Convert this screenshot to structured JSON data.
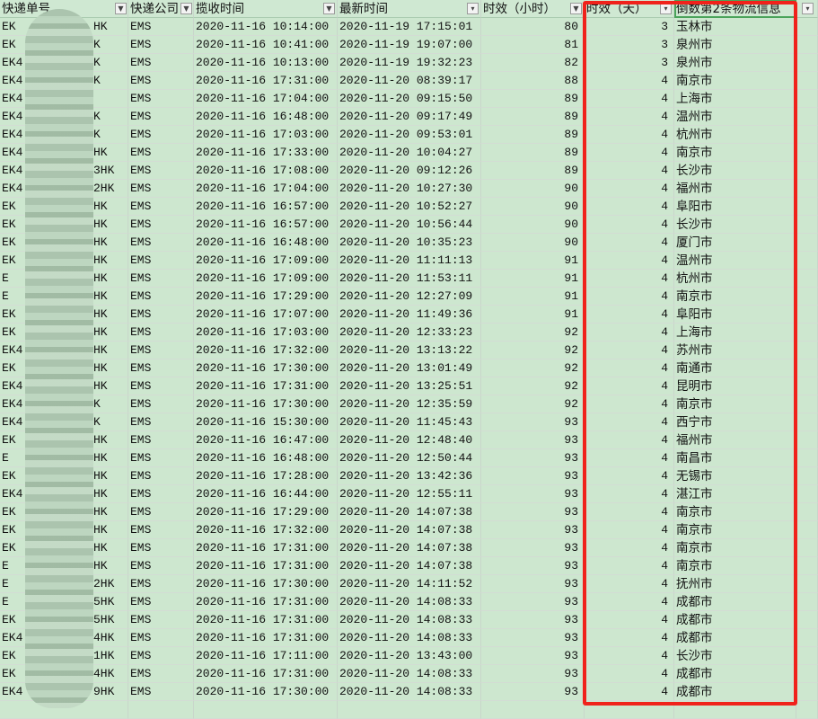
{
  "headers": [
    "快递单号",
    "快递公司",
    "揽收时间",
    "最新时间",
    "时效（小时）",
    "时效（天）",
    "倒数第2条物流信息",
    ""
  ],
  "header_filters": [
    "dropdown",
    "dropdown",
    "dropdown",
    "filter-active",
    "dropdown",
    "filter-active",
    "none",
    "filter-active"
  ],
  "colors": {
    "cell_bg": "#cde7cf",
    "highlight_border": "#f0221b",
    "selected_header_border": "#4aa35a"
  },
  "rows": [
    {
      "id_start": "EK",
      "id_end": "HK",
      "company": "EMS",
      "pickup": "2020-11-16 10:14:00",
      "latest": "2020-11-19 17:15:01",
      "hours": "80",
      "days": "3",
      "city": "玉林市"
    },
    {
      "id_start": "EK",
      "id_end": "K",
      "company": "EMS",
      "pickup": "2020-11-16 10:41:00",
      "latest": "2020-11-19 19:07:00",
      "hours": "81",
      "days": "3",
      "city": "泉州市"
    },
    {
      "id_start": "EK4",
      "id_end": "K",
      "company": "EMS",
      "pickup": "2020-11-16 10:13:00",
      "latest": "2020-11-19 19:32:23",
      "hours": "82",
      "days": "3",
      "city": "泉州市"
    },
    {
      "id_start": "EK4",
      "id_end": "K",
      "company": "EMS",
      "pickup": "2020-11-16 17:31:00",
      "latest": "2020-11-20 08:39:17",
      "hours": "88",
      "days": "4",
      "city": "南京市"
    },
    {
      "id_start": "EK4",
      "id_end": "",
      "company": "EMS",
      "pickup": "2020-11-16 17:04:00",
      "latest": "2020-11-20 09:15:50",
      "hours": "89",
      "days": "4",
      "city": "上海市"
    },
    {
      "id_start": "EK4",
      "id_end": "K",
      "company": "EMS",
      "pickup": "2020-11-16 16:48:00",
      "latest": "2020-11-20 09:17:49",
      "hours": "89",
      "days": "4",
      "city": "温州市"
    },
    {
      "id_start": "EK4",
      "id_end": "K",
      "company": "EMS",
      "pickup": "2020-11-16 17:03:00",
      "latest": "2020-11-20 09:53:01",
      "hours": "89",
      "days": "4",
      "city": "杭州市"
    },
    {
      "id_start": "EK4",
      "id_end": "HK",
      "company": "EMS",
      "pickup": "2020-11-16 17:33:00",
      "latest": "2020-11-20 10:04:27",
      "hours": "89",
      "days": "4",
      "city": "南京市"
    },
    {
      "id_start": "EK4",
      "id_end": "3HK",
      "company": "EMS",
      "pickup": "2020-11-16 17:08:00",
      "latest": "2020-11-20 09:12:26",
      "hours": "89",
      "days": "4",
      "city": "长沙市"
    },
    {
      "id_start": "EK4",
      "id_end": "2HK",
      "company": "EMS",
      "pickup": "2020-11-16 17:04:00",
      "latest": "2020-11-20 10:27:30",
      "hours": "90",
      "days": "4",
      "city": "福州市"
    },
    {
      "id_start": "EK",
      "id_end": "HK",
      "company": "EMS",
      "pickup": "2020-11-16 16:57:00",
      "latest": "2020-11-20 10:52:27",
      "hours": "90",
      "days": "4",
      "city": "阜阳市"
    },
    {
      "id_start": "EK",
      "id_end": "HK",
      "company": "EMS",
      "pickup": "2020-11-16 16:57:00",
      "latest": "2020-11-20 10:56:44",
      "hours": "90",
      "days": "4",
      "city": "长沙市"
    },
    {
      "id_start": "EK",
      "id_end": "HK",
      "company": "EMS",
      "pickup": "2020-11-16 16:48:00",
      "latest": "2020-11-20 10:35:23",
      "hours": "90",
      "days": "4",
      "city": "厦门市"
    },
    {
      "id_start": "EK",
      "id_end": "HK",
      "company": "EMS",
      "pickup": "2020-11-16 17:09:00",
      "latest": "2020-11-20 11:11:13",
      "hours": "91",
      "days": "4",
      "city": "温州市"
    },
    {
      "id_start": "E",
      "id_end": "HK",
      "company": "EMS",
      "pickup": "2020-11-16 17:09:00",
      "latest": "2020-11-20 11:53:11",
      "hours": "91",
      "days": "4",
      "city": "杭州市"
    },
    {
      "id_start": "E",
      "id_end": "HK",
      "company": "EMS",
      "pickup": "2020-11-16 17:29:00",
      "latest": "2020-11-20 12:27:09",
      "hours": "91",
      "days": "4",
      "city": "南京市"
    },
    {
      "id_start": "EK",
      "id_end": "HK",
      "company": "EMS",
      "pickup": "2020-11-16 17:07:00",
      "latest": "2020-11-20 11:49:36",
      "hours": "91",
      "days": "4",
      "city": "阜阳市"
    },
    {
      "id_start": "EK",
      "id_end": "HK",
      "company": "EMS",
      "pickup": "2020-11-16 17:03:00",
      "latest": "2020-11-20 12:33:23",
      "hours": "92",
      "days": "4",
      "city": "上海市"
    },
    {
      "id_start": "EK4",
      "id_end": "HK",
      "company": "EMS",
      "pickup": "2020-11-16 17:32:00",
      "latest": "2020-11-20 13:13:22",
      "hours": "92",
      "days": "4",
      "city": "苏州市"
    },
    {
      "id_start": "EK",
      "id_end": "HK",
      "company": "EMS",
      "pickup": "2020-11-16 17:30:00",
      "latest": "2020-11-20 13:01:49",
      "hours": "92",
      "days": "4",
      "city": "南通市"
    },
    {
      "id_start": "EK4",
      "id_end": "HK",
      "company": "EMS",
      "pickup": "2020-11-16 17:31:00",
      "latest": "2020-11-20 13:25:51",
      "hours": "92",
      "days": "4",
      "city": "昆明市"
    },
    {
      "id_start": "EK4",
      "id_end": "K",
      "company": "EMS",
      "pickup": "2020-11-16 17:30:00",
      "latest": "2020-11-20 12:35:59",
      "hours": "92",
      "days": "4",
      "city": "南京市"
    },
    {
      "id_start": "EK4",
      "id_end": "K",
      "company": "EMS",
      "pickup": "2020-11-16 15:30:00",
      "latest": "2020-11-20 11:45:43",
      "hours": "93",
      "days": "4",
      "city": "西宁市"
    },
    {
      "id_start": "EK",
      "id_end": "HK",
      "company": "EMS",
      "pickup": "2020-11-16 16:47:00",
      "latest": "2020-11-20 12:48:40",
      "hours": "93",
      "days": "4",
      "city": "福州市"
    },
    {
      "id_start": "E",
      "id_end": "HK",
      "company": "EMS",
      "pickup": "2020-11-16 16:48:00",
      "latest": "2020-11-20 12:50:44",
      "hours": "93",
      "days": "4",
      "city": "南昌市"
    },
    {
      "id_start": "EK",
      "id_end": "HK",
      "company": "EMS",
      "pickup": "2020-11-16 17:28:00",
      "latest": "2020-11-20 13:42:36",
      "hours": "93",
      "days": "4",
      "city": "无锡市"
    },
    {
      "id_start": "EK4",
      "id_end": "HK",
      "company": "EMS",
      "pickup": "2020-11-16 16:44:00",
      "latest": "2020-11-20 12:55:11",
      "hours": "93",
      "days": "4",
      "city": "湛江市"
    },
    {
      "id_start": "EK",
      "id_end": "HK",
      "company": "EMS",
      "pickup": "2020-11-16 17:29:00",
      "latest": "2020-11-20 14:07:38",
      "hours": "93",
      "days": "4",
      "city": "南京市"
    },
    {
      "id_start": "EK",
      "id_end": "HK",
      "company": "EMS",
      "pickup": "2020-11-16 17:32:00",
      "latest": "2020-11-20 14:07:38",
      "hours": "93",
      "days": "4",
      "city": "南京市"
    },
    {
      "id_start": "EK",
      "id_end": "HK",
      "company": "EMS",
      "pickup": "2020-11-16 17:31:00",
      "latest": "2020-11-20 14:07:38",
      "hours": "93",
      "days": "4",
      "city": "南京市"
    },
    {
      "id_start": "E",
      "id_end": "HK",
      "company": "EMS",
      "pickup": "2020-11-16 17:31:00",
      "latest": "2020-11-20 14:07:38",
      "hours": "93",
      "days": "4",
      "city": "南京市"
    },
    {
      "id_start": "E",
      "id_end": "2HK",
      "company": "EMS",
      "pickup": "2020-11-16 17:30:00",
      "latest": "2020-11-20 14:11:52",
      "hours": "93",
      "days": "4",
      "city": "抚州市"
    },
    {
      "id_start": "E",
      "id_end": "5HK",
      "company": "EMS",
      "pickup": "2020-11-16 17:31:00",
      "latest": "2020-11-20 14:08:33",
      "hours": "93",
      "days": "4",
      "city": "成都市"
    },
    {
      "id_start": "EK",
      "id_end": "5HK",
      "company": "EMS",
      "pickup": "2020-11-16 17:31:00",
      "latest": "2020-11-20 14:08:33",
      "hours": "93",
      "days": "4",
      "city": "成都市"
    },
    {
      "id_start": "EK4",
      "id_end": "4HK",
      "company": "EMS",
      "pickup": "2020-11-16 17:31:00",
      "latest": "2020-11-20 14:08:33",
      "hours": "93",
      "days": "4",
      "city": "成都市"
    },
    {
      "id_start": "EK",
      "id_end": "1HK",
      "company": "EMS",
      "pickup": "2020-11-16 17:11:00",
      "latest": "2020-11-20 13:43:00",
      "hours": "93",
      "days": "4",
      "city": "长沙市"
    },
    {
      "id_start": "EK",
      "id_end": "4HK",
      "company": "EMS",
      "pickup": "2020-11-16 17:31:00",
      "latest": "2020-11-20 14:08:33",
      "hours": "93",
      "days": "4",
      "city": "成都市"
    },
    {
      "id_start": "EK4",
      "id_end": "9HK",
      "company": "EMS",
      "pickup": "2020-11-16 17:30:00",
      "latest": "2020-11-20 14:08:33",
      "hours": "93",
      "days": "4",
      "city": "成都市"
    }
  ]
}
